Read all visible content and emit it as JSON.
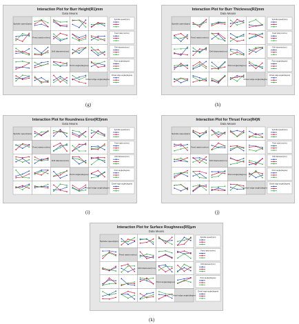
{
  "chart_data": [
    {
      "type": "line",
      "title": "Interaction Plot for Burr Height(R1)mm",
      "subtitle": "Data Means",
      "caption": "(g)",
      "factors": [
        "Spindle speed(rpm)",
        "Feed rate(mm/rev)",
        "Drill diameter(mm)",
        "Point angle(degree)",
        "Chisel edge angle(degree)"
      ],
      "grid": "5x5 matrix, factor names on diagonal",
      "legend_placement": "right",
      "series_colors": [
        "#1f3fb0",
        "#c8102e",
        "#2e9e3e"
      ]
    },
    {
      "type": "line",
      "title": "Interaction Plot for Burr Thickness(R2)mm",
      "subtitle": "Data Means",
      "caption": "(h)",
      "factors": [
        "Spindle speed(rpm)",
        "Feed rate(mm/rev)",
        "Drill diameter(mm)",
        "Point angle(degree)",
        "Chisel edge angle(degree)"
      ],
      "grid": "5x5 matrix, factor names on diagonal",
      "legend_placement": "right",
      "series_colors": [
        "#1f3fb0",
        "#c8102e",
        "#2e9e3e"
      ]
    },
    {
      "type": "line",
      "title": "Interaction Plot for Roundness Error(R3)mm",
      "subtitle": "Data Means",
      "caption": "(i)",
      "factors": [
        "Spindle speed(rpm)",
        "Feed rate(mm/rev)",
        "Drill diameter(mm)",
        "Point angle(degree)",
        "Chisel edge angle(degree)"
      ],
      "grid": "5x5 matrix, factor names on diagonal",
      "legend_placement": "right",
      "series_colors": [
        "#1f3fb0",
        "#c8102e",
        "#2e9e3e"
      ]
    },
    {
      "type": "line",
      "title": "Interaction Plot for Thrust Force(R4)N",
      "subtitle": "Data Means",
      "caption": "(j)",
      "factors": [
        "Spindle speed(rpm)",
        "Feed rate(mm/rev)",
        "Drill diameter(mm)",
        "Point angle(degree)",
        "Chisel edge angle(degree)"
      ],
      "grid": "5x5 matrix, factor names on diagonal",
      "legend_placement": "right",
      "series_colors": [
        "#1f3fb0",
        "#c8102e",
        "#2e9e3e"
      ]
    },
    {
      "type": "line",
      "title": "Interaction Plot for Surface Roughness(R5)μm",
      "subtitle": "Data Means",
      "caption": "(k)",
      "factors": [
        "Spindle speed(rpm)",
        "Feed rate(mm/rev)",
        "Drill diameter(mm)",
        "Point angle(degree)",
        "Chisel edge angle(degree)"
      ],
      "grid": "5x5 matrix, factor names on diagonal",
      "legend_placement": "right",
      "series_colors": [
        "#1f3fb0",
        "#c8102e",
        "#2e9e3e"
      ]
    }
  ]
}
